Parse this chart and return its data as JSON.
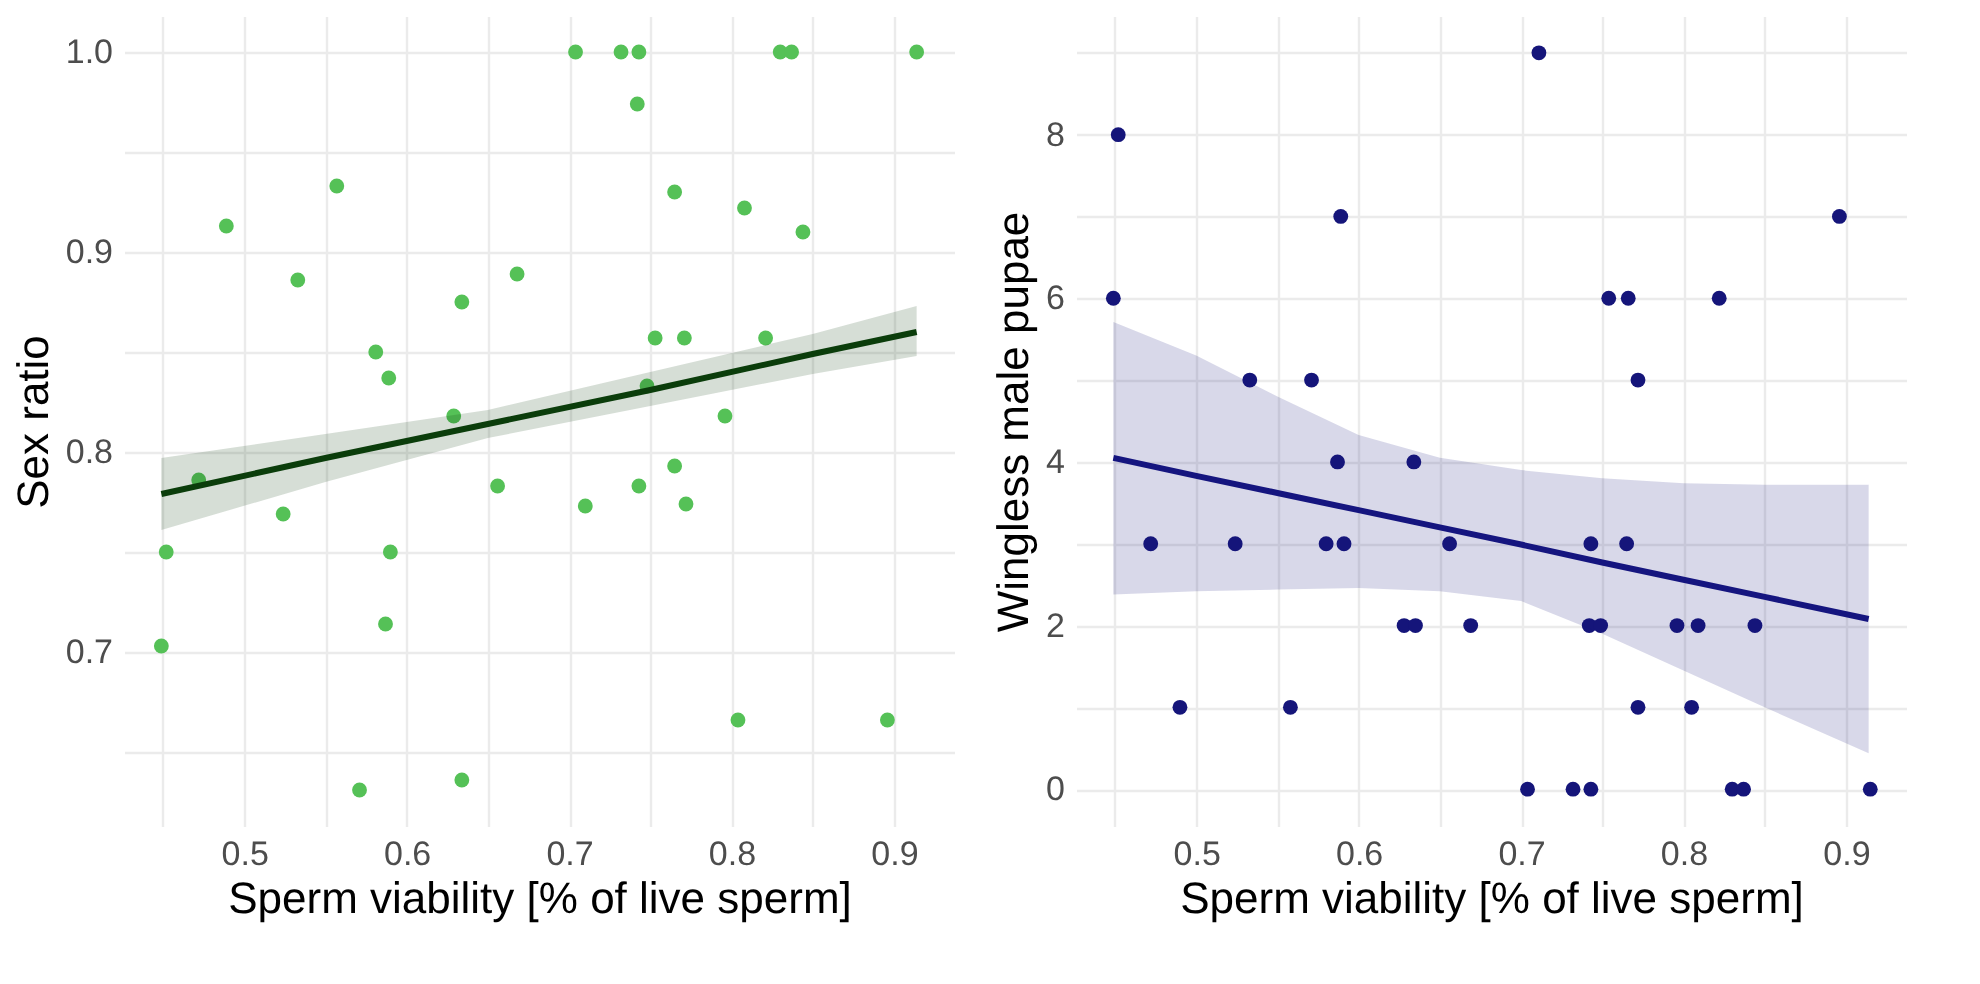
{
  "chart_data": [
    {
      "type": "scatter",
      "xlabel": "Sperm viability [% of live sperm]",
      "ylabel": "Sex ratio",
      "marker": "circle",
      "grid": true,
      "xlim": [
        0.426,
        0.937
      ],
      "ylim": [
        0.613,
        1.018
      ],
      "xticks": [
        {
          "value": 0.45,
          "label": null
        },
        0.5,
        {
          "value": 0.55,
          "label": null
        },
        0.6,
        {
          "value": 0.65,
          "label": null
        },
        0.7,
        {
          "value": 0.75,
          "label": null
        },
        0.8,
        {
          "value": 0.85,
          "label": null
        },
        0.9
      ],
      "yticks": [
        {
          "value": 0.65,
          "label": null
        },
        0.7,
        {
          "value": 0.75,
          "label": null
        },
        0.8,
        {
          "value": 0.85,
          "label": null
        },
        0.9,
        {
          "value": 0.95,
          "label": null
        },
        {
          "value": 1.0,
          "label": "1.0"
        }
      ],
      "series": [
        {
          "color": "#55c157",
          "x": [
            0.704,
            0.732,
            0.743,
            0.742,
            0.83,
            0.837,
            0.914,
            0.489,
            0.557,
            0.533,
            0.765,
            0.808,
            0.844,
            0.668,
            0.634,
            0.581,
            0.589,
            0.753,
            0.771,
            0.821,
            0.748,
            0.629,
            0.796,
            0.765,
            0.472,
            0.524,
            0.452,
            0.59,
            0.449,
            0.587,
            0.656,
            0.71,
            0.743,
            0.772,
            0.804,
            0.896,
            0.571,
            0.634
          ],
          "values": [
            1.0,
            1.0,
            1.0,
            0.974,
            1.0,
            1.0,
            1.0,
            0.913,
            0.933,
            0.886,
            0.93,
            0.922,
            0.91,
            0.889,
            0.875,
            0.85,
            0.837,
            0.857,
            0.857,
            0.857,
            0.833,
            0.818,
            0.818,
            0.793,
            0.786,
            0.769,
            0.75,
            0.75,
            0.703,
            0.714,
            0.783,
            0.773,
            0.783,
            0.774,
            0.666,
            0.666,
            0.631,
            0.636
          ]
        },
        {
          "type": "line",
          "marker": "none",
          "color": "#0b3d0b",
          "x": [
            0.449,
            0.55,
            0.65,
            0.75,
            0.85,
            0.914
          ],
          "values": [
            0.779,
            0.797,
            0.814,
            0.831,
            0.849,
            0.86
          ],
          "lower": [
            0.761,
            0.785,
            0.807,
            0.823,
            0.839,
            0.848
          ],
          "upper": [
            0.797,
            0.809,
            0.821,
            0.84,
            0.859,
            0.873
          ]
        }
      ]
    },
    {
      "type": "scatter",
      "xlabel": "Sperm viability [% of live sperm]",
      "ylabel": "Wingless male pupae",
      "marker": "circle",
      "grid": true,
      "xlim": [
        0.426,
        0.937
      ],
      "ylim": [
        -0.45,
        9.45
      ],
      "xticks": [
        {
          "value": 0.45,
          "label": null
        },
        0.5,
        {
          "value": 0.55,
          "label": null
        },
        0.6,
        {
          "value": 0.65,
          "label": null
        },
        0.7,
        {
          "value": 0.75,
          "label": null
        },
        0.8,
        {
          "value": 0.85,
          "label": null
        },
        0.9
      ],
      "yticks": [
        0,
        {
          "value": 1,
          "label": null
        },
        2,
        {
          "value": 3,
          "label": null
        },
        4,
        {
          "value": 5,
          "label": null
        },
        6,
        {
          "value": 7,
          "label": null
        },
        8,
        {
          "value": 9,
          "label": null
        }
      ],
      "series": [
        {
          "color": "#15157a",
          "x": [
            0.711,
            0.452,
            0.589,
            0.896,
            0.449,
            0.754,
            0.766,
            0.822,
            0.533,
            0.571,
            0.772,
            0.587,
            0.634,
            0.472,
            0.524,
            0.58,
            0.591,
            0.656,
            0.743,
            0.765,
            0.628,
            0.635,
            0.669,
            0.742,
            0.749,
            0.796,
            0.809,
            0.844,
            0.49,
            0.558,
            0.772,
            0.805,
            0.704,
            0.732,
            0.743,
            0.83,
            0.837,
            0.915
          ],
          "values": [
            9,
            8,
            7,
            7,
            6,
            6,
            6,
            6,
            5,
            5,
            5,
            4,
            4,
            3,
            3,
            3,
            3,
            3,
            3,
            3,
            2,
            2,
            2,
            2,
            2,
            2,
            2,
            2,
            1,
            1,
            1,
            1,
            0,
            0,
            0,
            0,
            0,
            0
          ]
        },
        {
          "type": "line",
          "marker": "none",
          "color": "#15157f",
          "x": [
            0.449,
            0.5,
            0.55,
            0.6,
            0.65,
            0.7,
            0.75,
            0.8,
            0.85,
            0.914
          ],
          "values": [
            4.05,
            3.83,
            3.62,
            3.41,
            3.2,
            2.99,
            2.77,
            2.56,
            2.35,
            2.08
          ],
          "lower": [
            2.38,
            2.42,
            2.44,
            2.46,
            2.42,
            2.3,
            1.9,
            1.45,
            1.0,
            0.44
          ],
          "upper": [
            5.71,
            5.3,
            4.8,
            4.33,
            4.05,
            3.9,
            3.8,
            3.74,
            3.72,
            3.72
          ]
        }
      ]
    }
  ]
}
